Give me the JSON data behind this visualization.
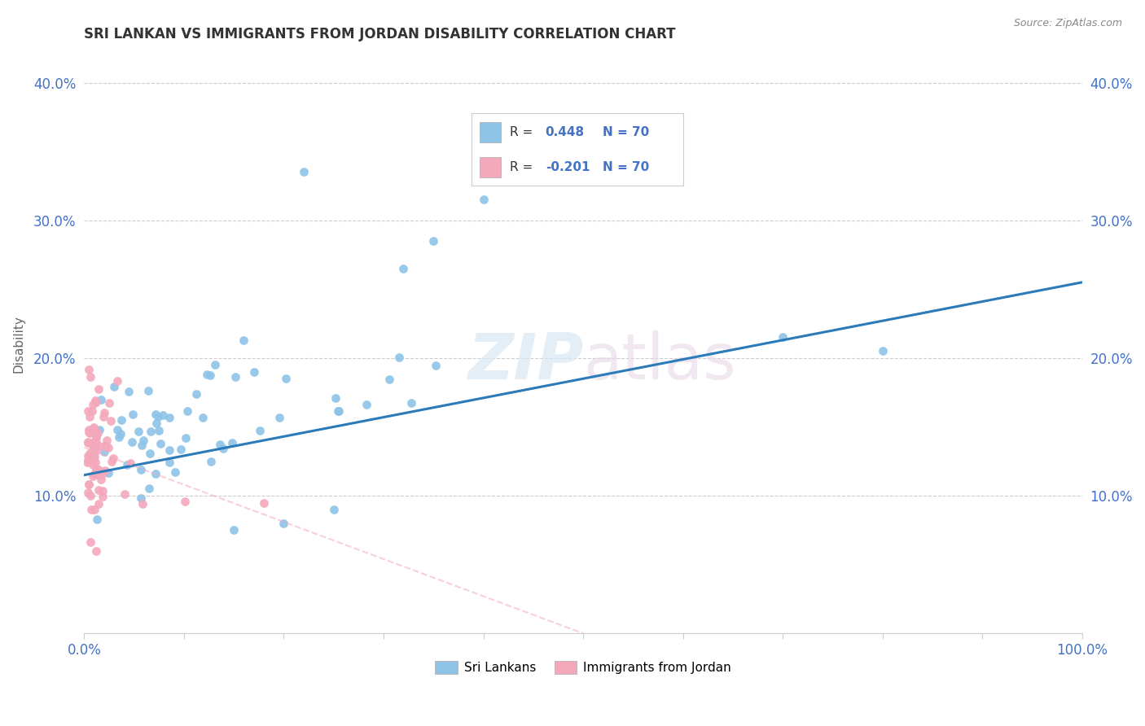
{
  "title": "SRI LANKAN VS IMMIGRANTS FROM JORDAN DISABILITY CORRELATION CHART",
  "source": "Source: ZipAtlas.com",
  "ylabel": "Disability",
  "legend1_r": "R =  0.448",
  "legend1_n": "N = 70",
  "legend2_r": "R = -0.201",
  "legend2_n": "N = 70",
  "legend_label1": "Sri Lankans",
  "legend_label2": "Immigrants from Jordan",
  "watermark": "ZIPatlas",
  "blue_color": "#8ec4e8",
  "pink_color": "#f4a8bc",
  "blue_line_color": "#2b7bba",
  "pink_line_color": "#f4a8bc",
  "background_color": "#ffffff",
  "grid_color": "#cccccc",
  "title_color": "#333333",
  "axis_color": "#4472c4",
  "xlim": [
    0,
    100
  ],
  "ylim": [
    0,
    42
  ],
  "yticks": [
    0,
    10,
    20,
    30,
    40
  ],
  "xticks": [
    0,
    10,
    20,
    30,
    40,
    50,
    60,
    70,
    80,
    90,
    100
  ],
  "blue_line_x": [
    0,
    100
  ],
  "blue_line_y": [
    11.5,
    25.5
  ],
  "pink_line_x": [
    0,
    50
  ],
  "pink_line_y": [
    13.5,
    0.0
  ]
}
